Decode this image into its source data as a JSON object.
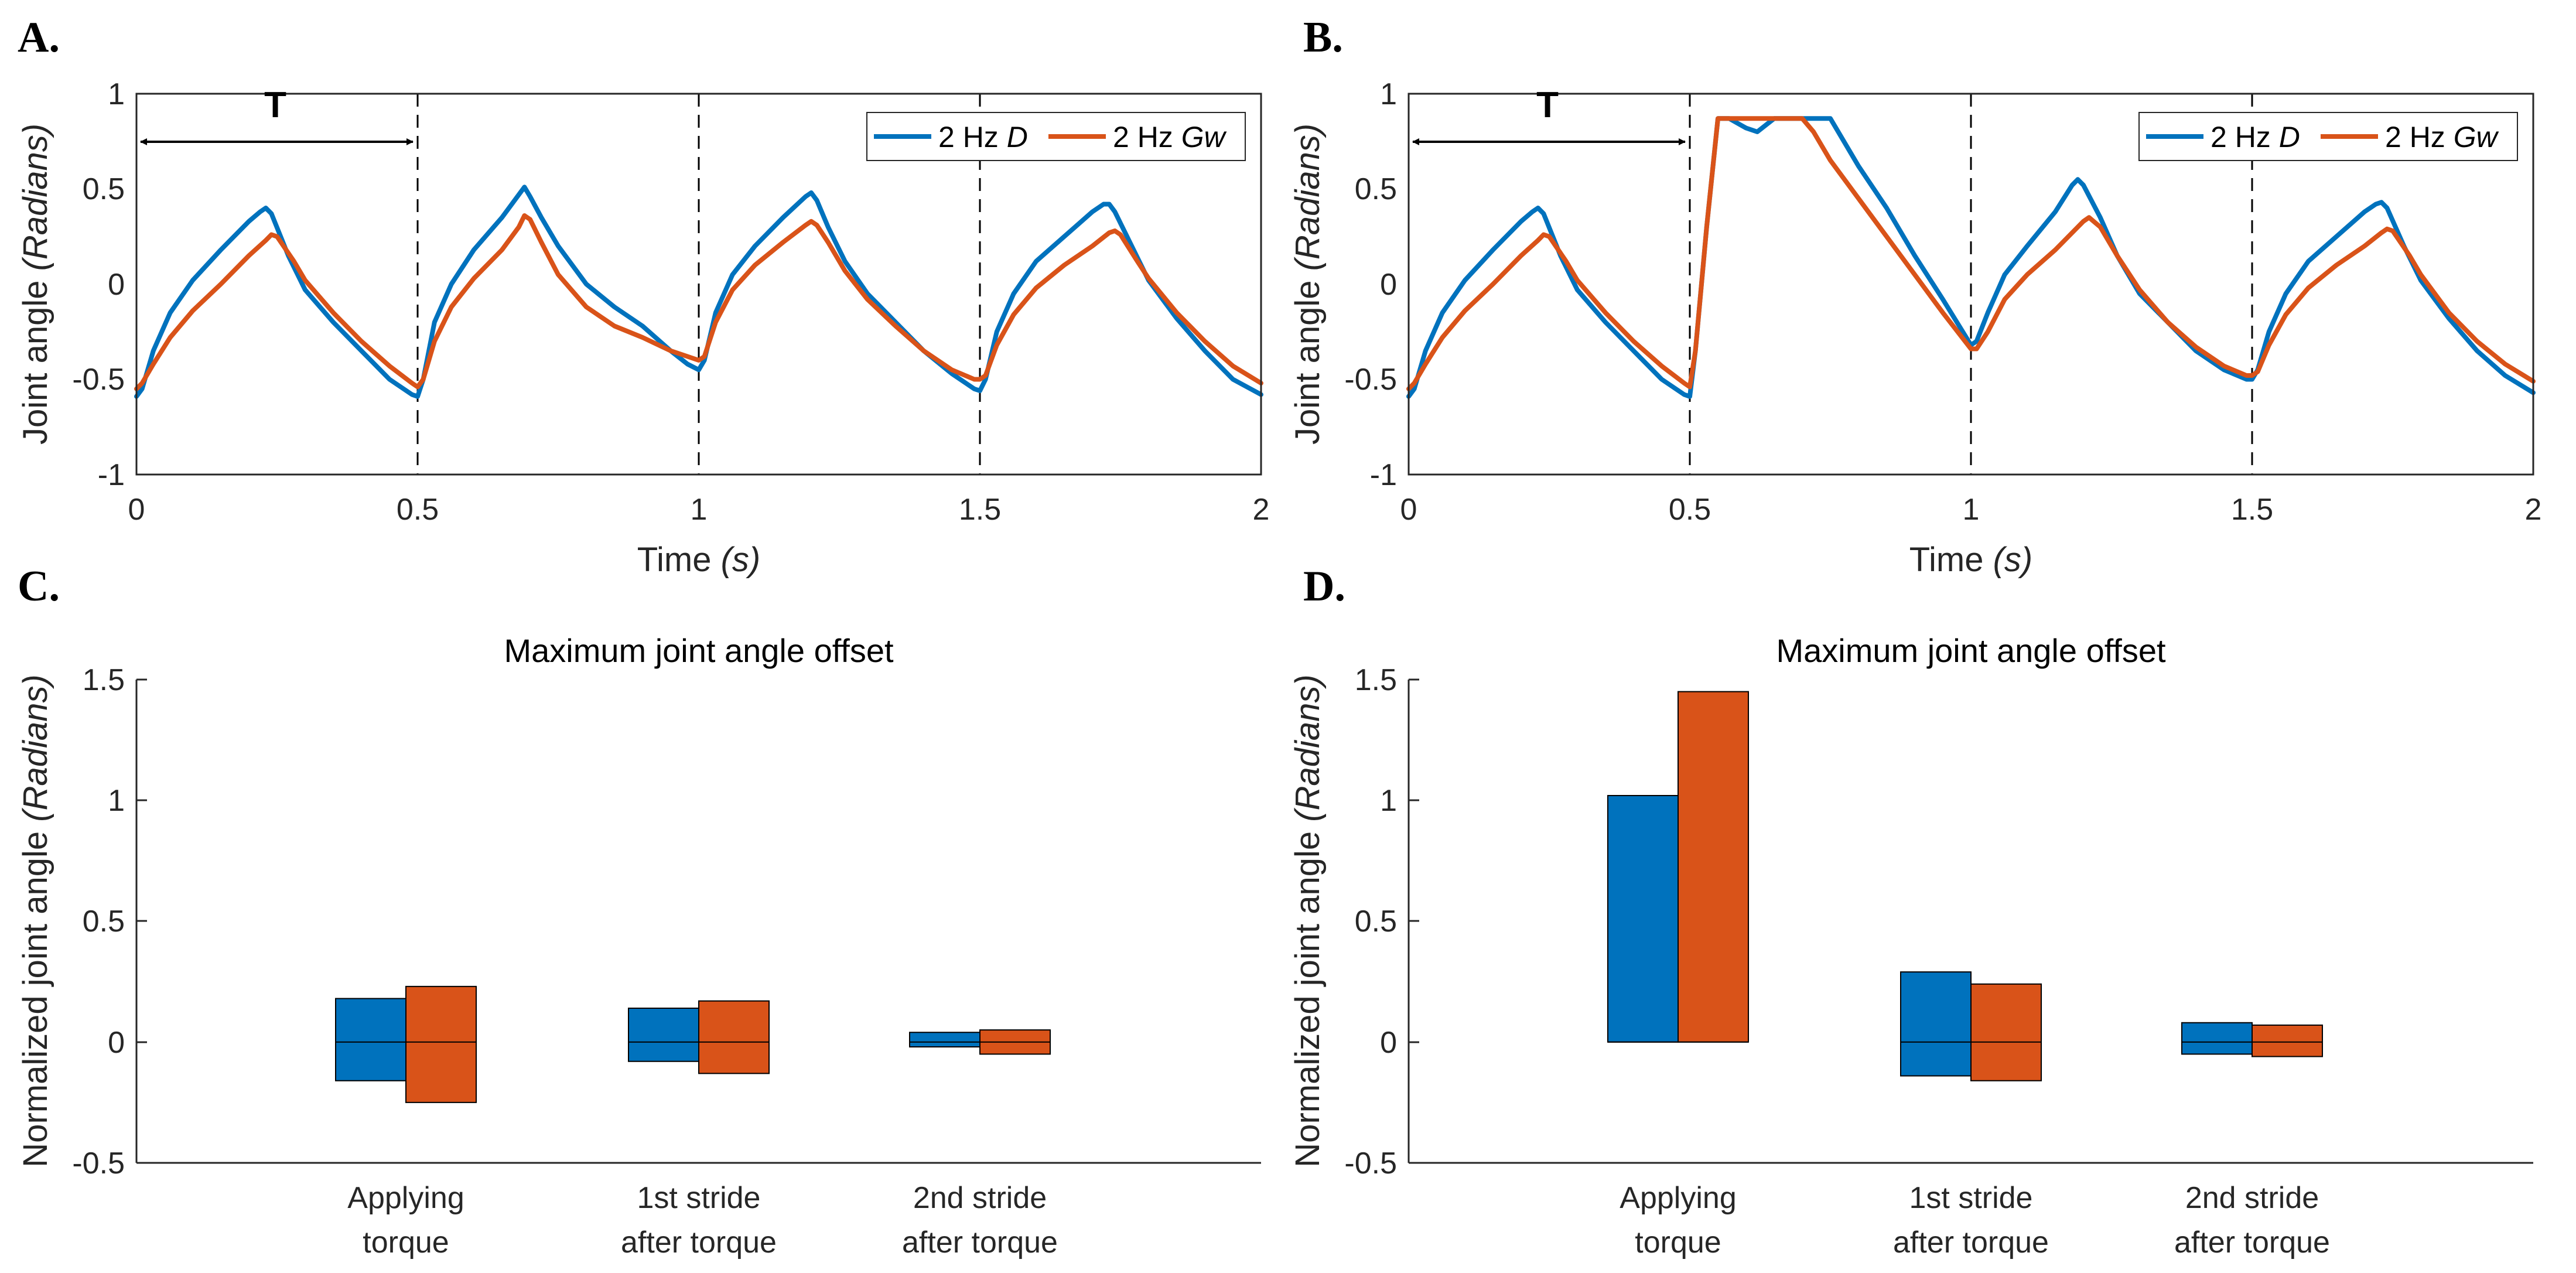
{
  "panels": {
    "A": {
      "label": "A.",
      "period_label": "T"
    },
    "B": {
      "label": "B.",
      "period_label": "T"
    },
    "C": {
      "label": "C.",
      "title": "Maximum joint angle offset"
    },
    "D": {
      "label": "D.",
      "title": "Maximum joint angle offset"
    }
  },
  "axes": {
    "time_label": "Time",
    "time_unit": "(s)",
    "joint_label": "Joint angle",
    "joint_unit": "(Radians)",
    "norm_label": "Normalized joint angle",
    "norm_unit": "(Radians)",
    "x_ticks": [
      "0",
      "0.5",
      "1",
      "1.5",
      "2"
    ],
    "y_ticks_top": [
      "1",
      "0.5",
      "0",
      "-0.5",
      "-1"
    ],
    "y_ticks_bottom": [
      "1.5",
      "1",
      "0.5",
      "0",
      "-0.5"
    ]
  },
  "legend": {
    "d_prefix": "2 Hz",
    "d_suffix": "D",
    "gw_prefix": "2 Hz",
    "gw_suffix": "Gw"
  },
  "categories": {
    "c1_line1": "Applying",
    "c1_line2": "torque",
    "c2_line1": "1st stride",
    "c2_line2": "after torque",
    "c3_line1": "2nd stride",
    "c3_line2": "after torque"
  },
  "colors": {
    "blue": "#0072BD",
    "orange": "#D95319"
  },
  "chart_data": [
    {
      "panel": "A",
      "type": "line",
      "xlabel": "Time (s)",
      "ylabel": "Joint angle (Radians)",
      "xlim": [
        0,
        2
      ],
      "ylim": [
        -1,
        1
      ],
      "vlines": [
        0.5,
        1,
        1.5
      ],
      "series": [
        {
          "name": "2 Hz D",
          "x": [
            0,
            0.01,
            0.03,
            0.06,
            0.1,
            0.15,
            0.2,
            0.22,
            0.23,
            0.24,
            0.27,
            0.3,
            0.35,
            0.4,
            0.45,
            0.49,
            0.5,
            0.51,
            0.53,
            0.56,
            0.6,
            0.65,
            0.68,
            0.69,
            0.7,
            0.72,
            0.75,
            0.8,
            0.85,
            0.9,
            0.95,
            0.98,
            1.0,
            1.01,
            1.03,
            1.06,
            1.1,
            1.15,
            1.19,
            1.2,
            1.21,
            1.23,
            1.26,
            1.3,
            1.35,
            1.4,
            1.45,
            1.49,
            1.5,
            1.51,
            1.53,
            1.56,
            1.6,
            1.65,
            1.7,
            1.72,
            1.73,
            1.74,
            1.77,
            1.8,
            1.85,
            1.9,
            1.95,
            2.0
          ],
          "y": [
            -0.59,
            -0.55,
            -0.35,
            -0.15,
            0.02,
            0.18,
            0.33,
            0.38,
            0.4,
            0.37,
            0.15,
            -0.03,
            -0.2,
            -0.35,
            -0.5,
            -0.58,
            -0.59,
            -0.5,
            -0.2,
            0.0,
            0.18,
            0.35,
            0.47,
            0.51,
            0.46,
            0.35,
            0.2,
            0.0,
            -0.12,
            -0.22,
            -0.35,
            -0.42,
            -0.45,
            -0.4,
            -0.15,
            0.05,
            0.2,
            0.35,
            0.46,
            0.48,
            0.44,
            0.3,
            0.12,
            -0.05,
            -0.2,
            -0.35,
            -0.47,
            -0.55,
            -0.56,
            -0.5,
            -0.25,
            -0.05,
            0.12,
            0.25,
            0.38,
            0.42,
            0.42,
            0.38,
            0.2,
            0.02,
            -0.18,
            -0.35,
            -0.5,
            -0.58
          ]
        },
        {
          "name": "2 Hz Gw",
          "x": [
            0,
            0.01,
            0.03,
            0.06,
            0.1,
            0.15,
            0.2,
            0.23,
            0.24,
            0.25,
            0.28,
            0.3,
            0.35,
            0.4,
            0.45,
            0.49,
            0.5,
            0.51,
            0.53,
            0.56,
            0.6,
            0.65,
            0.68,
            0.69,
            0.7,
            0.72,
            0.75,
            0.8,
            0.85,
            0.9,
            0.95,
            0.98,
            1.0,
            1.01,
            1.03,
            1.06,
            1.1,
            1.15,
            1.19,
            1.2,
            1.21,
            1.23,
            1.26,
            1.3,
            1.35,
            1.4,
            1.45,
            1.49,
            1.5,
            1.51,
            1.53,
            1.56,
            1.6,
            1.65,
            1.7,
            1.73,
            1.74,
            1.75,
            1.78,
            1.8,
            1.85,
            1.9,
            1.95,
            2.0
          ],
          "y": [
            -0.55,
            -0.52,
            -0.42,
            -0.28,
            -0.14,
            0.0,
            0.15,
            0.23,
            0.26,
            0.25,
            0.12,
            0.02,
            -0.15,
            -0.3,
            -0.43,
            -0.52,
            -0.54,
            -0.5,
            -0.3,
            -0.12,
            0.03,
            0.18,
            0.3,
            0.36,
            0.34,
            0.22,
            0.05,
            -0.12,
            -0.22,
            -0.28,
            -0.35,
            -0.38,
            -0.4,
            -0.38,
            -0.2,
            -0.03,
            0.1,
            0.22,
            0.31,
            0.33,
            0.31,
            0.22,
            0.07,
            -0.08,
            -0.22,
            -0.35,
            -0.45,
            -0.5,
            -0.5,
            -0.48,
            -0.32,
            -0.16,
            -0.02,
            0.1,
            0.2,
            0.27,
            0.28,
            0.26,
            0.12,
            0.03,
            -0.15,
            -0.3,
            -0.43,
            -0.52
          ]
        }
      ]
    },
    {
      "panel": "B",
      "type": "line",
      "xlabel": "Time (s)",
      "ylabel": "Joint angle (Radians)",
      "xlim": [
        0,
        2
      ],
      "ylim": [
        -1,
        1
      ],
      "vlines": [
        0.5,
        1,
        1.5
      ],
      "series": [
        {
          "name": "2 Hz D",
          "x": [
            0,
            0.01,
            0.03,
            0.06,
            0.1,
            0.15,
            0.2,
            0.22,
            0.23,
            0.24,
            0.27,
            0.3,
            0.35,
            0.4,
            0.45,
            0.49,
            0.5,
            0.51,
            0.53,
            0.55,
            0.57,
            0.6,
            0.62,
            0.65,
            0.7,
            0.74,
            0.75,
            0.78,
            0.8,
            0.85,
            0.9,
            0.95,
            1.0,
            1.01,
            1.03,
            1.06,
            1.1,
            1.15,
            1.18,
            1.19,
            1.2,
            1.23,
            1.26,
            1.3,
            1.35,
            1.4,
            1.45,
            1.49,
            1.5,
            1.51,
            1.53,
            1.56,
            1.6,
            1.65,
            1.7,
            1.72,
            1.73,
            1.74,
            1.77,
            1.8,
            1.85,
            1.9,
            1.95,
            2.0
          ],
          "y": [
            -0.59,
            -0.55,
            -0.35,
            -0.15,
            0.02,
            0.18,
            0.33,
            0.38,
            0.4,
            0.37,
            0.15,
            -0.03,
            -0.2,
            -0.35,
            -0.5,
            -0.58,
            -0.59,
            -0.35,
            0.3,
            0.87,
            0.87,
            0.82,
            0.8,
            0.87,
            0.87,
            0.87,
            0.87,
            0.72,
            0.62,
            0.4,
            0.15,
            -0.08,
            -0.32,
            -0.3,
            -0.15,
            0.05,
            0.2,
            0.38,
            0.52,
            0.55,
            0.52,
            0.35,
            0.15,
            -0.05,
            -0.2,
            -0.35,
            -0.45,
            -0.5,
            -0.5,
            -0.45,
            -0.25,
            -0.05,
            0.12,
            0.25,
            0.38,
            0.42,
            0.43,
            0.4,
            0.2,
            0.02,
            -0.18,
            -0.35,
            -0.48,
            -0.57
          ]
        },
        {
          "name": "2 Hz Gw",
          "x": [
            0,
            0.01,
            0.03,
            0.06,
            0.1,
            0.15,
            0.2,
            0.23,
            0.24,
            0.25,
            0.28,
            0.3,
            0.35,
            0.4,
            0.45,
            0.49,
            0.5,
            0.51,
            0.53,
            0.55,
            0.57,
            0.6,
            0.65,
            0.7,
            0.72,
            0.75,
            0.8,
            0.85,
            0.9,
            0.95,
            1.0,
            1.01,
            1.03,
            1.06,
            1.1,
            1.15,
            1.19,
            1.2,
            1.21,
            1.23,
            1.26,
            1.3,
            1.35,
            1.4,
            1.45,
            1.49,
            1.5,
            1.51,
            1.53,
            1.56,
            1.6,
            1.65,
            1.7,
            1.73,
            1.74,
            1.75,
            1.78,
            1.8,
            1.85,
            1.9,
            1.95,
            2.0
          ],
          "y": [
            -0.55,
            -0.52,
            -0.42,
            -0.28,
            -0.14,
            0.0,
            0.15,
            0.23,
            0.26,
            0.25,
            0.12,
            0.02,
            -0.15,
            -0.3,
            -0.43,
            -0.52,
            -0.54,
            -0.35,
            0.3,
            0.87,
            0.87,
            0.87,
            0.87,
            0.87,
            0.8,
            0.65,
            0.45,
            0.25,
            0.05,
            -0.15,
            -0.34,
            -0.34,
            -0.25,
            -0.08,
            0.05,
            0.18,
            0.3,
            0.33,
            0.35,
            0.3,
            0.15,
            -0.03,
            -0.2,
            -0.33,
            -0.43,
            -0.48,
            -0.48,
            -0.46,
            -0.32,
            -0.16,
            -0.02,
            0.1,
            0.2,
            0.27,
            0.29,
            0.28,
            0.15,
            0.05,
            -0.15,
            -0.3,
            -0.42,
            -0.51
          ]
        }
      ]
    },
    {
      "panel": "C",
      "type": "bar",
      "ylabel": "Normalized joint angle (Radians)",
      "ylim": [
        -0.5,
        1.5
      ],
      "categories": [
        "Applying torque",
        "1st stride after torque",
        "2nd stride after torque"
      ],
      "series": [
        {
          "name": "2 Hz D",
          "low": [
            -0.16,
            -0.08,
            -0.02
          ],
          "high": [
            0.18,
            0.14,
            0.04
          ]
        },
        {
          "name": "2 Hz Gw",
          "low": [
            -0.25,
            -0.13,
            -0.05
          ],
          "high": [
            0.23,
            0.17,
            0.05
          ]
        }
      ],
      "zero_line": 0
    },
    {
      "panel": "D",
      "type": "bar",
      "ylabel": "Normalized joint angle (Radians)",
      "ylim": [
        -0.5,
        1.5
      ],
      "categories": [
        "Applying torque",
        "1st stride after torque",
        "2nd stride after torque"
      ],
      "series": [
        {
          "name": "2 Hz D",
          "low": [
            0.0,
            -0.14,
            -0.05
          ],
          "high": [
            1.02,
            0.29,
            0.08
          ]
        },
        {
          "name": "2 Hz Gw",
          "low": [
            0.0,
            -0.16,
            -0.06
          ],
          "high": [
            1.45,
            0.24,
            0.07
          ]
        }
      ],
      "zero_line": 0
    }
  ]
}
